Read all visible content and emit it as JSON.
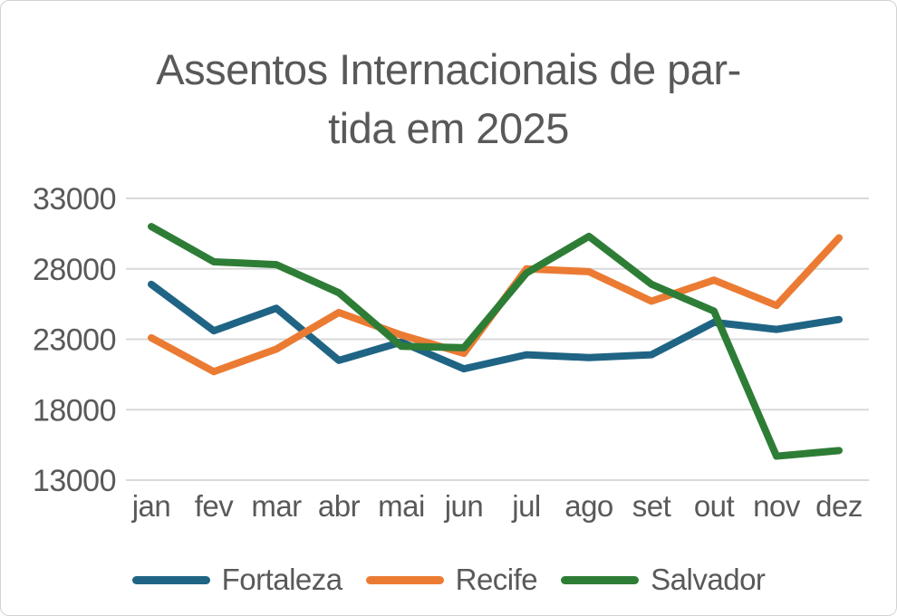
{
  "window": {
    "background": "#ffffff",
    "border_color": "#d2d2d2"
  },
  "title": {
    "line1": "Assentos Internacionais de par-",
    "line2": "tida em 2025",
    "color": "#595959"
  },
  "chart_data": {
    "type": "line",
    "title": "Assentos Internacionais de partida em 2025",
    "xlabel": "",
    "ylabel": "",
    "categories": [
      "jan",
      "fev",
      "mar",
      "abr",
      "mai",
      "jun",
      "jul",
      "ago",
      "set",
      "out",
      "nov",
      "dez"
    ],
    "series": [
      {
        "name": "Fortaleza",
        "color": "#1F6484",
        "values": [
          26900,
          23600,
          25200,
          21500,
          22800,
          20900,
          21900,
          21700,
          21900,
          24200,
          23700,
          24400
        ]
      },
      {
        "name": "Recife",
        "color": "#EB7B33",
        "values": [
          23100,
          20700,
          22300,
          24900,
          23300,
          22000,
          28000,
          27800,
          25700,
          27200,
          25400,
          30200
        ]
      },
      {
        "name": "Salvador",
        "color": "#2E7D36",
        "values": [
          31000,
          28500,
          28300,
          26300,
          22500,
          22400,
          27700,
          30300,
          26900,
          25000,
          14700,
          15100
        ]
      }
    ],
    "ylim": [
      13000,
      33000
    ],
    "yticks": [
      13000,
      18000,
      23000,
      28000,
      33000
    ],
    "ytick_labels": [
      "13000",
      "18000",
      "23000",
      "28000",
      "33000"
    ],
    "grid": true,
    "gridline_color": "#d9d9d9",
    "axis_text_color": "#595959",
    "legend_position": "bottom",
    "line_width": 8
  }
}
